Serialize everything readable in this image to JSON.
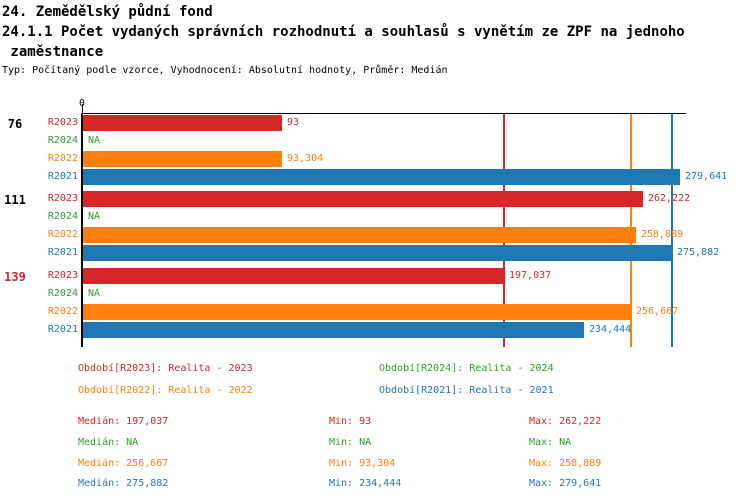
{
  "header": {
    "title": "24. Zemědělský půdní fond",
    "subtitle_line1": "24.1.1 Počet vydaných správních rozhodnutí a souhlasů s vynětím ze ZPF na jednoho",
    "subtitle_line2": " zaměstnance",
    "meta": "Typ: Počítaný podle vzorce, Vyhodnocení: Absolutní hodnoty, Průměr: Medián"
  },
  "colors": {
    "r2023": "#d62728",
    "r2024": "#2ca02c",
    "r2022": "#ff7f0e",
    "r2021": "#1f77b4",
    "axis": "#000000",
    "highlight_group": "#d62728"
  },
  "chart_data": {
    "type": "bar",
    "orientation": "horizontal",
    "value_axis": {
      "position": "top",
      "min": 0,
      "max": 282,
      "tick_labels": [
        "0"
      ],
      "grid": false
    },
    "na_text": "NA",
    "series_order": [
      "R2023",
      "R2024",
      "R2022",
      "R2021"
    ],
    "series_colors": {
      "R2023": "#d62728",
      "R2024": "#2ca02c",
      "R2022": "#ff7f0e",
      "R2021": "#1f77b4"
    },
    "reference_lines": [
      {
        "series": "R2023",
        "stat": "median",
        "value": 197.037,
        "color": "#d62728"
      },
      {
        "series": "R2022",
        "stat": "median",
        "value": 256.667,
        "color": "#ff7f0e"
      },
      {
        "series": "R2021",
        "stat": "median",
        "value": 275.882,
        "color": "#1f77b4"
      }
    ],
    "groups": [
      {
        "label": "76",
        "label_color": "#000000",
        "bars": [
          {
            "series": "R2023",
            "value": 93,
            "display": "93",
            "color": "#d62728"
          },
          {
            "series": "R2024",
            "value": null,
            "display": "NA",
            "color": "#2ca02c"
          },
          {
            "series": "R2022",
            "value": 93.304,
            "display": "93,304",
            "color": "#ff7f0e"
          },
          {
            "series": "R2021",
            "value": 279.641,
            "display": "279,641",
            "color": "#1f77b4"
          }
        ]
      },
      {
        "label": "111",
        "label_color": "#000000",
        "bars": [
          {
            "series": "R2023",
            "value": 262.222,
            "display": "262,222",
            "color": "#d62728"
          },
          {
            "series": "R2024",
            "value": null,
            "display": "NA",
            "color": "#2ca02c"
          },
          {
            "series": "R2022",
            "value": 258.889,
            "display": "258,889",
            "color": "#ff7f0e"
          },
          {
            "series": "R2021",
            "value": 275.882,
            "display": "275,882",
            "color": "#1f77b4"
          }
        ]
      },
      {
        "label": "139",
        "label_color": "#d62728",
        "bars": [
          {
            "series": "R2023",
            "value": 197.037,
            "display": "197,037",
            "color": "#d62728"
          },
          {
            "series": "R2024",
            "value": null,
            "display": "NA",
            "color": "#2ca02c"
          },
          {
            "series": "R2022",
            "value": 256.667,
            "display": "256,667",
            "color": "#ff7f0e"
          },
          {
            "series": "R2021",
            "value": 234.444,
            "display": "234,444",
            "color": "#1f77b4"
          }
        ]
      }
    ]
  },
  "legend": {
    "items": [
      {
        "series": "R2023",
        "label": "Období[R2023]: Realita - 2023",
        "color": "#d62728"
      },
      {
        "series": "R2024",
        "label": "Období[R2024]: Realita - 2024",
        "color": "#2ca02c"
      },
      {
        "series": "R2022",
        "label": "Období[R2022]: Realita - 2022",
        "color": "#ff7f0e"
      },
      {
        "series": "R2021",
        "label": "Období[R2021]: Realita - 2021",
        "color": "#1f77b4"
      }
    ]
  },
  "stats": {
    "labels": {
      "median": "Medián",
      "min": "Min",
      "max": "Max"
    },
    "rows": [
      {
        "series": "R2023",
        "color": "#d62728",
        "median": "197,037",
        "min": "93",
        "max": "262,222"
      },
      {
        "series": "R2024",
        "color": "#2ca02c",
        "median": "NA",
        "min": "NA",
        "max": "NA"
      },
      {
        "series": "R2022",
        "color": "#ff7f0e",
        "median": "256,667",
        "min": "93,304",
        "max": "258,889"
      },
      {
        "series": "R2021",
        "color": "#1f77b4",
        "median": "275,882",
        "min": "234,444",
        "max": "279,641"
      }
    ]
  }
}
